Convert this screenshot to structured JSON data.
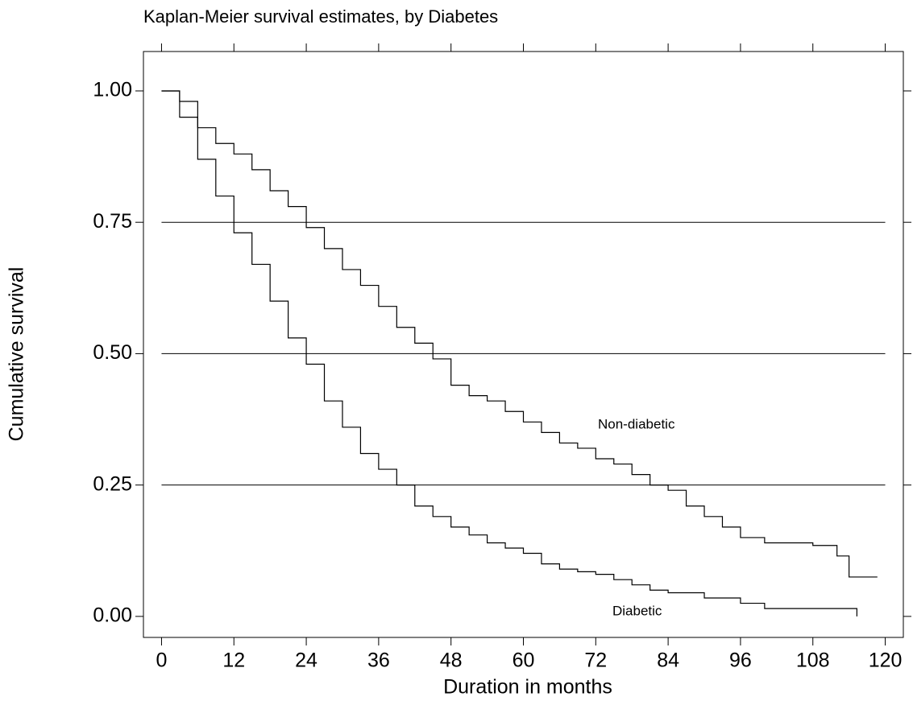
{
  "chart_data": {
    "type": "step",
    "title": "Kaplan-Meier survival estimates, by Diabetes",
    "xlabel": "Duration in months",
    "ylabel": "Cumulative survival",
    "xlim": [
      -3,
      123
    ],
    "ylim": [
      -0.04,
      1.075
    ],
    "xticks": [
      0,
      12,
      24,
      36,
      48,
      60,
      72,
      84,
      96,
      108,
      120
    ],
    "yticks": [
      {
        "value": 0,
        "label": "0.00"
      },
      0.25,
      {
        "value": 0.5,
        "label": "0.50"
      },
      0.75,
      {
        "value": 1,
        "label": "1.00"
      }
    ],
    "grid": true,
    "series": [
      {
        "name": "Non-diabetic",
        "color": "#000000",
        "x": [
          0,
          3,
          6,
          9,
          12,
          15,
          18,
          21,
          24,
          27,
          30,
          33,
          36,
          39,
          42,
          45,
          48,
          51,
          54,
          57,
          60,
          63,
          66,
          69,
          72,
          75,
          78,
          81,
          84,
          87,
          90,
          93,
          96,
          100,
          108,
          112,
          114,
          118.7
        ],
        "values": [
          1.0,
          0.98,
          0.93,
          0.9,
          0.88,
          0.85,
          0.81,
          0.78,
          0.74,
          0.7,
          0.66,
          0.63,
          0.59,
          0.55,
          0.52,
          0.49,
          0.44,
          0.42,
          0.41,
          0.39,
          0.37,
          0.35,
          0.33,
          0.32,
          0.3,
          0.29,
          0.27,
          0.25,
          0.24,
          0.21,
          0.19,
          0.17,
          0.15,
          0.14,
          0.135,
          0.115,
          0.075,
          0.075
        ]
      },
      {
        "name": "Diabetic",
        "color": "#000000",
        "x": [
          0,
          3,
          6,
          9,
          12,
          15,
          18,
          21,
          24,
          27,
          30,
          33,
          36,
          39,
          42,
          45,
          48,
          51,
          54,
          57,
          60,
          63,
          66,
          69,
          72,
          75,
          78,
          81,
          84,
          90,
          96,
          100,
          115.3
        ],
        "values": [
          1.0,
          0.95,
          0.87,
          0.8,
          0.73,
          0.67,
          0.6,
          0.53,
          0.48,
          0.41,
          0.36,
          0.31,
          0.28,
          0.25,
          0.21,
          0.19,
          0.17,
          0.155,
          0.14,
          0.13,
          0.12,
          0.1,
          0.09,
          0.085,
          0.08,
          0.07,
          0.06,
          0.05,
          0.045,
          0.035,
          0.025,
          0.015,
          0.0
        ]
      }
    ]
  }
}
